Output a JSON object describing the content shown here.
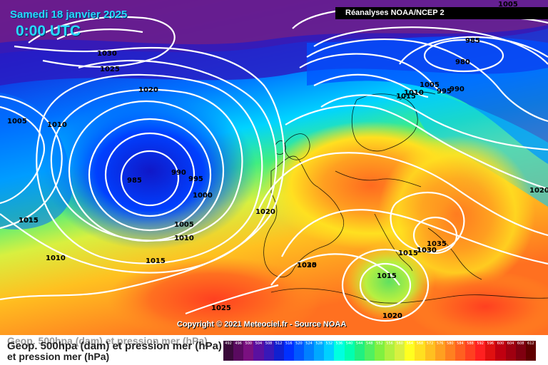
{
  "map": {
    "date": "Samedi 18 janvier 2025",
    "time": "0:00 UTC",
    "source": "Réanalyses NOAA/NCEP 2",
    "copyright": "Copyright © 2021 Meteociel.fr - Source NOAA",
    "isobar_labels": [
      "1005",
      "1030",
      "1025",
      "1020",
      "985",
      "980",
      "1005",
      "995",
      "990",
      "1010",
      "1015",
      "1005",
      "1010",
      "1015",
      "985",
      "990",
      "995",
      "1000",
      "1020",
      "1005",
      "1010",
      "1015",
      "1015",
      "1010",
      "1015",
      "1030",
      "1020",
      "1025",
      "1035",
      "1030",
      "1030",
      "1015",
      "1020",
      "1025",
      "1020"
    ]
  },
  "legend": {
    "line1": "Geop. 500hpa (dam) et pression mer (hPa)",
    "line2": "et pression mer (hPa)",
    "scale_values": [
      "492",
      "496",
      "500",
      "504",
      "508",
      "512",
      "516",
      "520",
      "524",
      "528",
      "532",
      "536",
      "540",
      "544",
      "548",
      "552",
      "556",
      "560",
      "564",
      "568",
      "572",
      "576",
      "580",
      "584",
      "588",
      "592",
      "596",
      "600",
      "604",
      "608",
      "612"
    ],
    "scale_colors": [
      "#3a0a3a",
      "#5a0a60",
      "#7a1080",
      "#5a10a0",
      "#3818b8",
      "#1020d0",
      "#0030ff",
      "#0058ff",
      "#0080ff",
      "#00a8ff",
      "#00d0ff",
      "#00ffe0",
      "#00ffb0",
      "#20f080",
      "#50f060",
      "#80f040",
      "#b0f040",
      "#d8f040",
      "#ffff20",
      "#ffe020",
      "#ffc020",
      "#ffa020",
      "#ff8020",
      "#ff6020",
      "#ff4020",
      "#ff2020",
      "#e01010",
      "#c00010",
      "#a00010",
      "#800010",
      "#600000"
    ]
  }
}
